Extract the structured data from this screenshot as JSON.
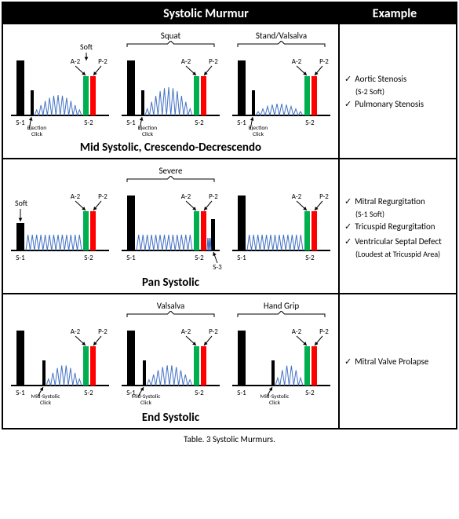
{
  "header": {
    "title": "Systolic Murmur",
    "example": "Example"
  },
  "caption": "Table. 3 Systolic Murmurs.",
  "colors": {
    "s1": "#000000",
    "a2": "#00b050",
    "p2": "#ff0000",
    "click": "#000000",
    "murmur": "#4472c4",
    "baseline": "#000000",
    "arrow": "#000000"
  },
  "rows": [
    {
      "title": "Mid Systolic, Crescendo-Decrescendo",
      "examples": [
        {
          "text": "Aortic Stenosis",
          "sub": "(S-2 Soft)"
        },
        {
          "text": "Pulmonary Stenosis"
        }
      ],
      "panels": [
        {
          "topLabel": "",
          "s1": {
            "h": 70,
            "label": "S-1"
          },
          "click": {
            "h": 32,
            "label": "Ejection\nClick"
          },
          "a2p2": {
            "a2h": 50,
            "p2h": 50,
            "soft": true
          },
          "murmur": "crescDecresc",
          "soft": true
        },
        {
          "topLabel": "Squat",
          "s1": {
            "h": 70,
            "label": "S-1"
          },
          "click": {
            "h": 32,
            "label": "Ejection\nClick"
          },
          "a2p2": {
            "a2h": 50,
            "p2h": 50
          },
          "murmur": "crescDecrescBig"
        },
        {
          "topLabel": "Stand/Valsalva",
          "s1": {
            "h": 70,
            "label": "S-1"
          },
          "click": {
            "h": 32,
            "label": "Ejection\nClick"
          },
          "a2p2": {
            "a2h": 50,
            "p2h": 50
          },
          "murmur": "crescDecrescSmall"
        }
      ]
    },
    {
      "title": "Pan Systolic",
      "examples": [
        {
          "text": "Mitral Regurgitation",
          "sub": "(S-1 Soft)"
        },
        {
          "text": "Tricuspid Regurgitation"
        },
        {
          "text": "Ventricular Septal Defect",
          "sub": "(Loudest at Tricuspid Area)"
        }
      ],
      "panels": [
        {
          "topLabel": "",
          "s1": {
            "h": 35,
            "label": "S-1",
            "soft": true
          },
          "a2p2": {
            "a2h": 50,
            "p2h": 50
          },
          "murmur": "pan"
        },
        {
          "topLabel": "Severe",
          "s1": {
            "h": 70,
            "label": "S-1"
          },
          "a2p2": {
            "a2h": 50,
            "p2h": 50
          },
          "s3": {
            "h": 40,
            "label": "S-3"
          },
          "murmur": "panSevere"
        },
        {
          "topLabel": "",
          "s1": {
            "h": 70,
            "label": "S-1"
          },
          "a2p2": {
            "a2h": 50,
            "p2h": 50
          },
          "murmur": "pan"
        }
      ]
    },
    {
      "title": "End Systolic",
      "examples": [
        {
          "text": "Mitral Valve Prolapse"
        }
      ],
      "panels": [
        {
          "topLabel": "",
          "s1": {
            "h": 70,
            "label": "S-1"
          },
          "midClick": {
            "h": 32,
            "x": 45,
            "label": "Mid-Systolic\nClick"
          },
          "a2p2": {
            "a2h": 50,
            "p2h": 50
          },
          "murmur": "endMid"
        },
        {
          "topLabel": "Valsalva",
          "s1": {
            "h": 70,
            "label": "S-1"
          },
          "midClick": {
            "h": 32,
            "x": 32,
            "label": "Mid-Systolic\nClick"
          },
          "a2p2": {
            "a2h": 50,
            "p2h": 50
          },
          "murmur": "endEarly"
        },
        {
          "topLabel": "Hand Grip",
          "s1": {
            "h": 70,
            "label": "S-1"
          },
          "midClick": {
            "h": 32,
            "x": 55,
            "label": "Mid-Systolic\nClick"
          },
          "a2p2": {
            "a2h": 50,
            "p2h": 50
          },
          "murmur": "endLate"
        }
      ]
    }
  ]
}
